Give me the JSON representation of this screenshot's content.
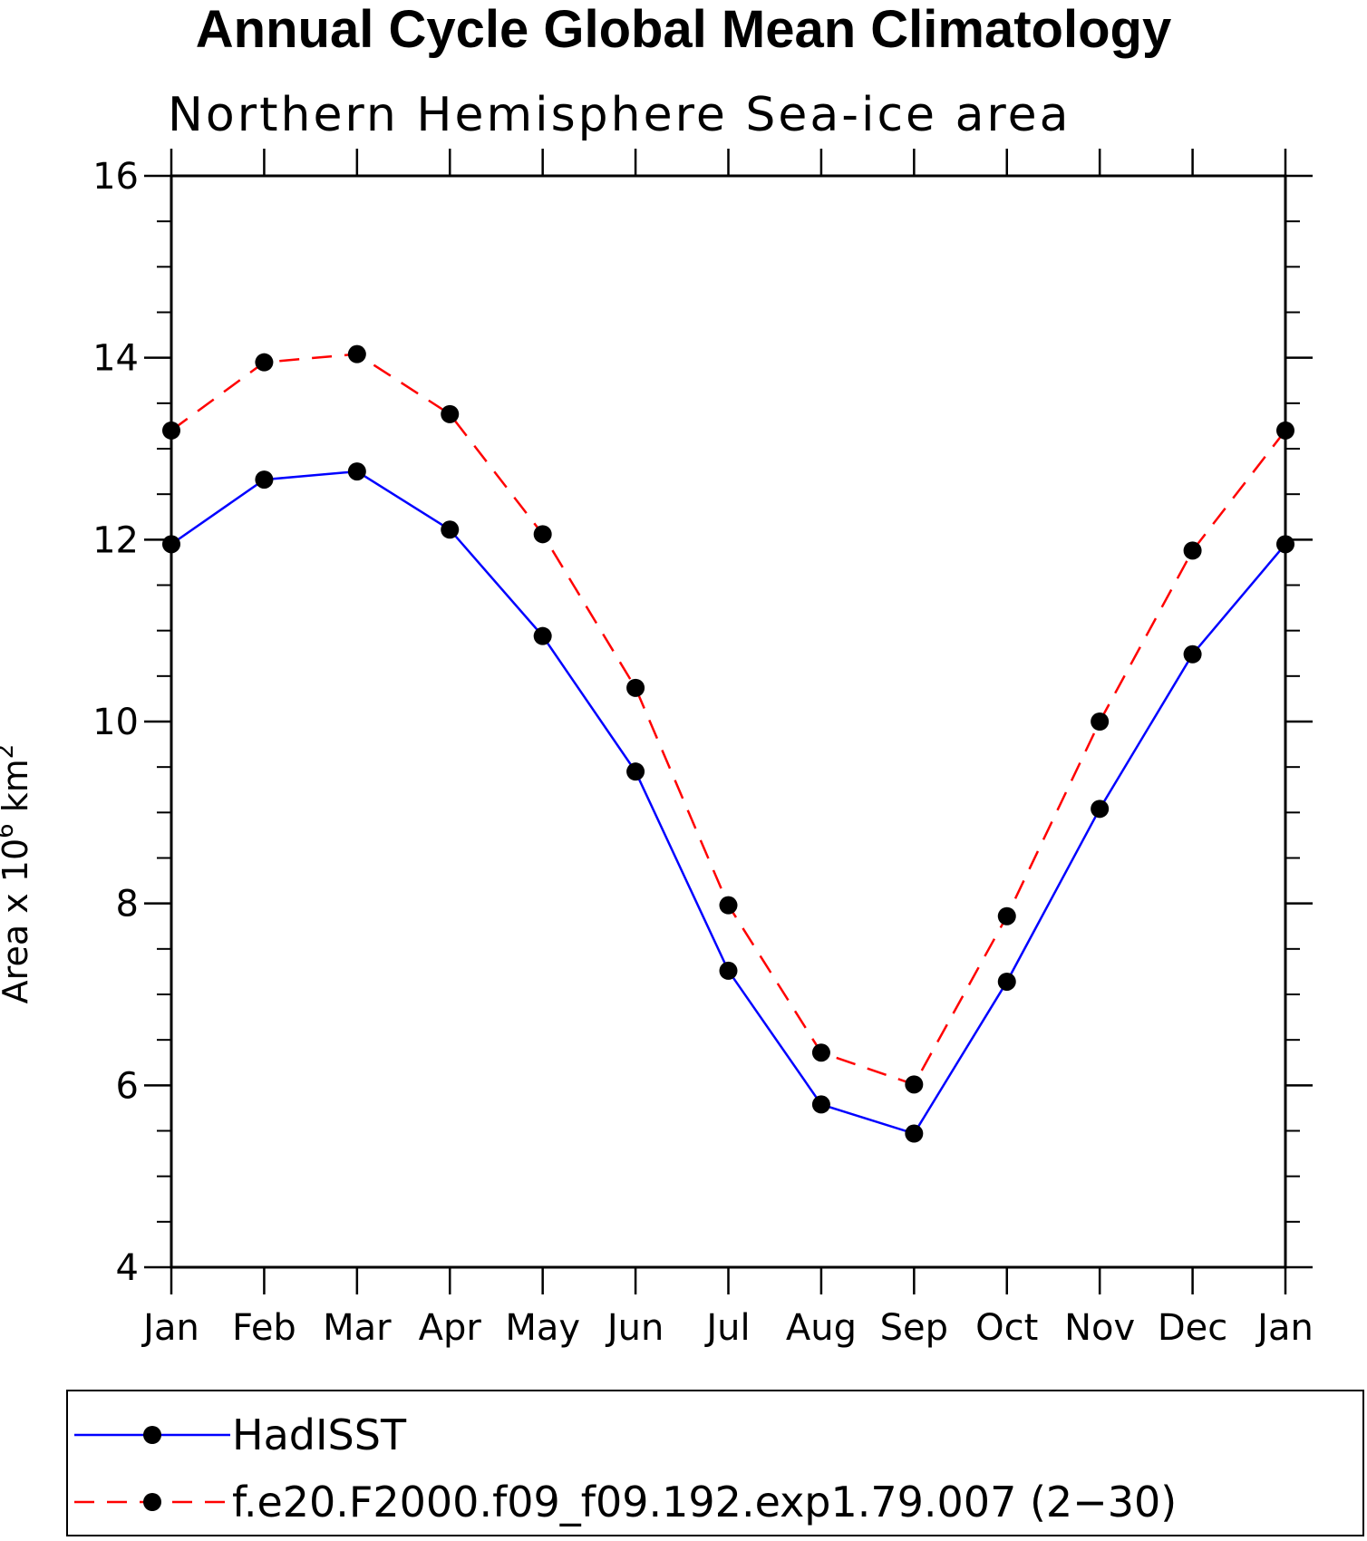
{
  "chart_data": {
    "type": "line",
    "title": "Annual Cycle Global Mean Climatology",
    "subtitle": "Northern Hemisphere Sea-ice area",
    "ylabel_main": "Area x 10",
    "ylabel_sup1": "6",
    "ylabel_unit": " km",
    "ylabel_sup2": "2",
    "xlabel": "",
    "categories": [
      "Jan",
      "Feb",
      "Mar",
      "Apr",
      "May",
      "Jun",
      "Jul",
      "Aug",
      "Sep",
      "Oct",
      "Nov",
      "Dec",
      "Jan"
    ],
    "ylim": [
      4,
      16
    ],
    "yticks": [
      4,
      6,
      8,
      10,
      12,
      14,
      16
    ],
    "ytick_labels": [
      "4",
      "6",
      "8",
      "10",
      "12",
      "14",
      "16"
    ],
    "yminor_step": 0.5,
    "series": [
      {
        "name": "HadISST",
        "color": "#0000ff",
        "dash": "solid",
        "values": [
          11.95,
          12.66,
          12.75,
          12.11,
          10.94,
          9.45,
          7.26,
          5.79,
          5.47,
          7.14,
          9.04,
          10.74,
          11.95
        ]
      },
      {
        "name": "f.e20.F2000.f09_f09.192.exp1.79.007 (2−30)",
        "color": "#ff0000",
        "dash": "dashed",
        "values": [
          13.2,
          13.95,
          14.04,
          13.38,
          12.06,
          10.37,
          7.98,
          6.36,
          6.01,
          7.86,
          10.0,
          11.88,
          13.2
        ]
      }
    ],
    "legend_position": "bottom",
    "marker_color": "#000000"
  }
}
